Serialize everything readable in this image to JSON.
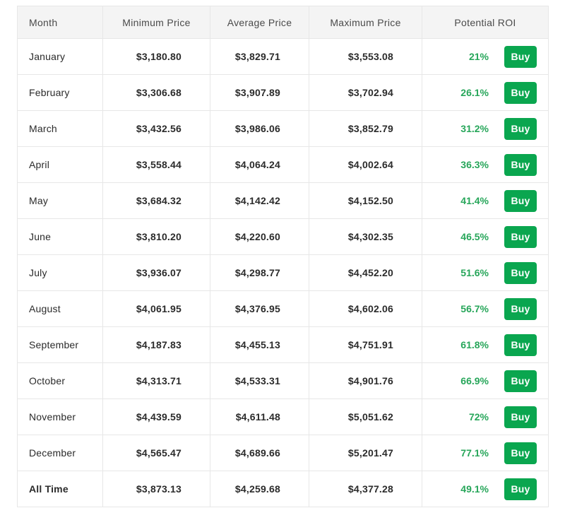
{
  "table": {
    "headers": [
      "Month",
      "Minimum Price",
      "Average Price",
      "Maximum Price",
      "Potential ROI"
    ],
    "buy_label": "Buy",
    "colors": {
      "roi_text_green": "#27a65a",
      "buy_button_green": "#0aa64f",
      "header_background": "#f4f4f4",
      "border": "#e7e7e7"
    },
    "rows": [
      {
        "month": "January",
        "min": "$3,180.80",
        "avg": "$3,829.71",
        "max": "$3,553.08",
        "roi": "21%",
        "bold": false
      },
      {
        "month": "February",
        "min": "$3,306.68",
        "avg": "$3,907.89",
        "max": "$3,702.94",
        "roi": "26.1%",
        "bold": false
      },
      {
        "month": "March",
        "min": "$3,432.56",
        "avg": "$3,986.06",
        "max": "$3,852.79",
        "roi": "31.2%",
        "bold": false
      },
      {
        "month": "April",
        "min": "$3,558.44",
        "avg": "$4,064.24",
        "max": "$4,002.64",
        "roi": "36.3%",
        "bold": false
      },
      {
        "month": "May",
        "min": "$3,684.32",
        "avg": "$4,142.42",
        "max": "$4,152.50",
        "roi": "41.4%",
        "bold": false
      },
      {
        "month": "June",
        "min": "$3,810.20",
        "avg": "$4,220.60",
        "max": "$4,302.35",
        "roi": "46.5%",
        "bold": false
      },
      {
        "month": "July",
        "min": "$3,936.07",
        "avg": "$4,298.77",
        "max": "$4,452.20",
        "roi": "51.6%",
        "bold": false
      },
      {
        "month": "August",
        "min": "$4,061.95",
        "avg": "$4,376.95",
        "max": "$4,602.06",
        "roi": "56.7%",
        "bold": false
      },
      {
        "month": "September",
        "min": "$4,187.83",
        "avg": "$4,455.13",
        "max": "$4,751.91",
        "roi": "61.8%",
        "bold": false
      },
      {
        "month": "October",
        "min": "$4,313.71",
        "avg": "$4,533.31",
        "max": "$4,901.76",
        "roi": "66.9%",
        "bold": false
      },
      {
        "month": "November",
        "min": "$4,439.59",
        "avg": "$4,611.48",
        "max": "$5,051.62",
        "roi": "72%",
        "bold": false
      },
      {
        "month": "December",
        "min": "$4,565.47",
        "avg": "$4,689.66",
        "max": "$5,201.47",
        "roi": "77.1%",
        "bold": false
      },
      {
        "month": "All Time",
        "min": "$3,873.13",
        "avg": "$4,259.68",
        "max": "$4,377.28",
        "roi": "49.1%",
        "bold": true
      }
    ]
  }
}
